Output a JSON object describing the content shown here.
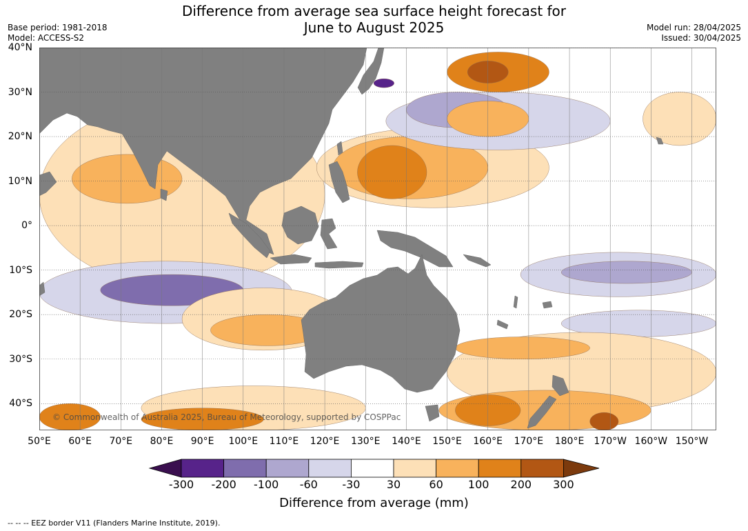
{
  "title": {
    "line1": "Difference from average sea surface height forecast for",
    "line2": "June to August 2025"
  },
  "meta_left": {
    "base_period": "Base period: 1981-2018",
    "model": "Model: ACCESS-S2"
  },
  "meta_right": {
    "model_run": "Model run: 28/04/2025",
    "issued": "Issued: 30/04/2025"
  },
  "map": {
    "lon_range": [
      50,
      216
    ],
    "lat_range": [
      -46,
      40
    ],
    "land_color": "#808080",
    "ocean_color": "#ffffff",
    "lat_ticks": [
      {
        "value": 40,
        "label": "40°N"
      },
      {
        "value": 30,
        "label": "30°N"
      },
      {
        "value": 20,
        "label": "20°N"
      },
      {
        "value": 10,
        "label": "10°N"
      },
      {
        "value": 0,
        "label": "0°"
      },
      {
        "value": -10,
        "label": "10°S"
      },
      {
        "value": -20,
        "label": "20°S"
      },
      {
        "value": -30,
        "label": "30°S"
      },
      {
        "value": -40,
        "label": "40°S"
      }
    ],
    "lon_ticks": [
      {
        "value": 50,
        "label": "50°E"
      },
      {
        "value": 60,
        "label": "60°E"
      },
      {
        "value": 70,
        "label": "70°E"
      },
      {
        "value": 80,
        "label": "80°E"
      },
      {
        "value": 90,
        "label": "90°E"
      },
      {
        "value": 100,
        "label": "100°E"
      },
      {
        "value": 110,
        "label": "110°E"
      },
      {
        "value": 120,
        "label": "120°E"
      },
      {
        "value": 130,
        "label": "130°E"
      },
      {
        "value": 140,
        "label": "140°E"
      },
      {
        "value": 150,
        "label": "150°E"
      },
      {
        "value": 160,
        "label": "160°E"
      },
      {
        "value": 170,
        "label": "170°E"
      },
      {
        "value": 180,
        "label": "180°E"
      },
      {
        "value": 190,
        "label": "170°W"
      },
      {
        "value": 200,
        "label": "160°W"
      },
      {
        "value": 210,
        "label": "150°W"
      }
    ],
    "copyright": "© Commonwealth of Australia 2025, Bureau of Meteorology, supported by COSPPac",
    "anomaly_regions": [
      {
        "level": 30,
        "lon": [
          50,
          120
        ],
        "lat": [
          -14,
          28
        ]
      },
      {
        "level": 60,
        "lon": [
          58,
          85
        ],
        "lat": [
          5,
          16
        ]
      },
      {
        "level": 30,
        "lon": [
          118,
          175
        ],
        "lat": [
          4,
          22
        ]
      },
      {
        "level": 60,
        "lon": [
          122,
          160
        ],
        "lat": [
          6,
          20
        ]
      },
      {
        "level": 100,
        "lon": [
          128,
          145
        ],
        "lat": [
          6,
          18
        ]
      },
      {
        "level": 100,
        "lon": [
          150,
          175
        ],
        "lat": [
          30,
          39
        ]
      },
      {
        "level": 200,
        "lon": [
          155,
          165
        ],
        "lat": [
          32,
          37
        ]
      },
      {
        "level": -30,
        "lon": [
          135,
          190
        ],
        "lat": [
          17,
          30
        ]
      },
      {
        "level": -60,
        "lon": [
          140,
          165
        ],
        "lat": [
          22,
          30
        ]
      },
      {
        "level": -300,
        "lon": [
          132,
          137
        ],
        "lat": [
          31,
          33
        ]
      },
      {
        "level": 60,
        "lon": [
          150,
          170
        ],
        "lat": [
          20,
          28
        ]
      },
      {
        "level": 30,
        "lon": [
          198,
          216
        ],
        "lat": [
          18,
          30
        ]
      },
      {
        "level": -30,
        "lon": [
          50,
          112
        ],
        "lat": [
          -22,
          -8
        ]
      },
      {
        "level": -100,
        "lon": [
          65,
          100
        ],
        "lat": [
          -18,
          -11
        ]
      },
      {
        "level": -30,
        "lon": [
          168,
          216
        ],
        "lat": [
          -16,
          -6
        ]
      },
      {
        "level": -60,
        "lon": [
          178,
          210
        ],
        "lat": [
          -13,
          -8
        ]
      },
      {
        "level": -30,
        "lon": [
          178,
          216
        ],
        "lat": [
          -25,
          -19
        ]
      },
      {
        "level": 30,
        "lon": [
          85,
          125
        ],
        "lat": [
          -28,
          -14
        ]
      },
      {
        "level": 60,
        "lon": [
          92,
          120
        ],
        "lat": [
          -27,
          -20
        ]
      },
      {
        "level": 30,
        "lon": [
          150,
          216
        ],
        "lat": [
          -42,
          -24
        ]
      },
      {
        "level": 60,
        "lon": [
          152,
          185
        ],
        "lat": [
          -30,
          -25
        ]
      },
      {
        "level": 30,
        "lon": [
          75,
          130
        ],
        "lat": [
          -46,
          -36
        ]
      },
      {
        "level": 100,
        "lon": [
          50,
          65
        ],
        "lat": [
          -46,
          -40
        ]
      },
      {
        "level": 100,
        "lon": [
          75,
          105
        ],
        "lat": [
          -46,
          -41
        ]
      },
      {
        "level": 60,
        "lon": [
          148,
          200
        ],
        "lat": [
          -46,
          -37
        ]
      },
      {
        "level": 100,
        "lon": [
          152,
          168
        ],
        "lat": [
          -45,
          -38
        ]
      },
      {
        "level": 200,
        "lon": [
          185,
          192
        ],
        "lat": [
          -46,
          -42
        ]
      }
    ]
  },
  "colorbar": {
    "levels": [
      "-300",
      "-200",
      "-100",
      "-60",
      "-30",
      "30",
      "60",
      "100",
      "200",
      "300"
    ],
    "colors": [
      "#3a0f4f",
      "#57238a",
      "#7f6dad",
      "#aea7cf",
      "#d6d6ea",
      "#ffffff",
      "#fde0b7",
      "#f8b25c",
      "#e0821a",
      "#b25714",
      "#7c3a0d"
    ],
    "label": "Difference from average (mm)"
  },
  "footer": "--  --  -- EEZ border V11 (Flanders Marine Institute, 2019)."
}
